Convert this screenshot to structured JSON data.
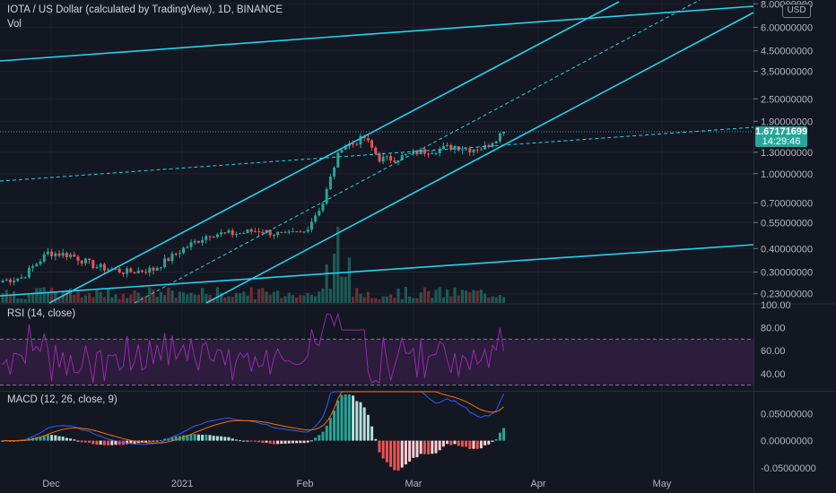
{
  "header": {
    "symbol_title": "IOTA / US Dollar (calculated by TradingView), 1D, BINANCE",
    "vol_label": "Vol",
    "currency": "USD"
  },
  "price_label": {
    "value": "1.67171699",
    "countdown": "14:29:46"
  },
  "colors": {
    "background": "#131722",
    "up": "#26a69a",
    "down": "#ef5350",
    "trendline": "#22d3ee",
    "rsi": "#9c27b0",
    "macd": "#2962ff",
    "signal": "#ff6d00"
  },
  "chart_data": [
    {
      "type": "candlestick",
      "title": "IOTA / US Dollar (calculated by TradingView), 1D, BINANCE",
      "scale": "log",
      "y_ticks": [
        "8.00000000",
        "6.00000000",
        "4.50000000",
        "3.50000000",
        "2.50000000",
        "1.90000000",
        "1.30000000",
        "1.00000000",
        "0.70000000",
        "0.55000000",
        "0.40000000",
        "0.30000000",
        "0.23000000"
      ],
      "y_tick_values": [
        8.0,
        6.0,
        4.5,
        3.5,
        2.5,
        1.9,
        1.3,
        1.0,
        0.7,
        0.55,
        0.4,
        0.3,
        0.23
      ],
      "ylim": [
        0.21,
        8.2
      ],
      "x_ticks": [
        "Dec",
        "2021",
        "Feb",
        "Mar",
        "Apr",
        "May"
      ],
      "last_price": 1.67171699,
      "waypoints": [
        [
          0,
          0.27
        ],
        [
          5,
          0.28
        ],
        [
          12,
          0.38
        ],
        [
          18,
          0.37
        ],
        [
          25,
          0.32
        ],
        [
          33,
          0.3
        ],
        [
          40,
          0.31
        ],
        [
          48,
          0.4
        ],
        [
          55,
          0.48
        ],
        [
          62,
          0.48
        ],
        [
          68,
          0.5
        ],
        [
          75,
          0.47
        ],
        [
          80,
          0.49
        ],
        [
          85,
          0.7
        ],
        [
          88,
          1.1
        ],
        [
          90,
          1.4
        ],
        [
          93,
          1.45
        ],
        [
          95,
          1.52
        ],
        [
          96,
          1.55
        ],
        [
          100,
          1.2
        ],
        [
          104,
          1.2
        ],
        [
          110,
          1.3
        ],
        [
          116,
          1.35
        ],
        [
          120,
          1.4
        ],
        [
          124,
          1.35
        ],
        [
          128,
          1.38
        ],
        [
          132,
          1.62
        ],
        [
          133,
          1.67
        ]
      ],
      "trendlines": "cyan channel and reference lines",
      "volume": "histogram at bottom of price pane"
    },
    {
      "type": "line",
      "title": "RSI (14, close)",
      "y_ticks": [
        "100.00",
        "80.00",
        "60.00",
        "40.00"
      ],
      "y_tick_values": [
        100,
        80,
        60,
        40
      ],
      "ylim": [
        25,
        100
      ],
      "band": [
        30,
        70
      ]
    },
    {
      "type": "bar",
      "title": "MACD (12, 26, close, 9)",
      "y_ticks": [
        "0.05000000",
        "0.00000000",
        "-0.05000000"
      ],
      "y_tick_values": [
        0.05,
        0.0,
        -0.05
      ],
      "ylim": [
        -0.06,
        0.09
      ],
      "series": [
        {
          "name": "MACD"
        },
        {
          "name": "Signal"
        },
        {
          "name": "Histogram"
        }
      ]
    }
  ]
}
